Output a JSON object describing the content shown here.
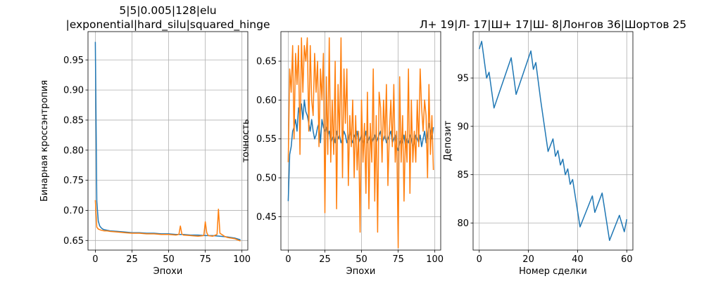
{
  "chart_data": [
    {
      "type": "line",
      "title": "5|5|0.005|128|elu\n|exponential|hard_silu|squared_hinge",
      "xlabel": "Эпохи",
      "ylabel": "Бинарная кроссэнтропия",
      "xlim": [
        -5,
        104
      ],
      "ylim": [
        0.634,
        0.997
      ],
      "xticks": [
        0,
        25,
        50,
        75,
        100
      ],
      "yticks": [
        0.65,
        0.7,
        0.75,
        0.8,
        0.85,
        0.9,
        0.95
      ],
      "ytick_labels": [
        "0.65",
        "0.70",
        "0.75",
        "0.80",
        "0.85",
        "0.90",
        "0.95"
      ],
      "grid": true,
      "series": [
        {
          "color": "#1f77b4",
          "x": [
            0,
            1,
            2,
            3,
            4,
            5,
            6,
            8,
            10,
            15,
            20,
            25,
            30,
            35,
            40,
            45,
            50,
            55,
            60,
            65,
            70,
            75,
            80,
            85,
            90,
            95,
            99
          ],
          "values": [
            0.98,
            0.715,
            0.682,
            0.674,
            0.671,
            0.669,
            0.668,
            0.667,
            0.666,
            0.665,
            0.664,
            0.663,
            0.663,
            0.662,
            0.662,
            0.661,
            0.661,
            0.66,
            0.66,
            0.659,
            0.659,
            0.658,
            0.658,
            0.657,
            0.656,
            0.654,
            0.651
          ]
        },
        {
          "color": "#ff7f0e",
          "x": [
            0,
            1,
            2,
            3,
            4,
            6,
            8,
            10,
            15,
            20,
            25,
            30,
            35,
            40,
            45,
            50,
            55,
            57,
            58,
            59,
            60,
            65,
            70,
            74,
            75,
            76,
            77,
            80,
            83,
            84,
            85,
            88,
            90,
            95,
            98,
            99
          ],
          "values": [
            0.717,
            0.672,
            0.669,
            0.668,
            0.667,
            0.666,
            0.666,
            0.665,
            0.664,
            0.663,
            0.662,
            0.662,
            0.661,
            0.661,
            0.66,
            0.66,
            0.659,
            0.66,
            0.674,
            0.661,
            0.659,
            0.658,
            0.657,
            0.658,
            0.681,
            0.663,
            0.658,
            0.657,
            0.66,
            0.702,
            0.662,
            0.657,
            0.655,
            0.653,
            0.65,
            0.649
          ]
        }
      ]
    },
    {
      "type": "line",
      "xlabel": "Эпохи",
      "ylabel": "точность",
      "xlim": [
        -5,
        104
      ],
      "ylim": [
        0.407,
        0.688
      ],
      "xticks": [
        0,
        25,
        50,
        75,
        100
      ],
      "yticks": [
        0.45,
        0.5,
        0.55,
        0.6,
        0.65
      ],
      "ytick_labels": [
        "0.45",
        "0.50",
        "0.55",
        "0.60",
        "0.65"
      ],
      "grid": true,
      "series": [
        {
          "color": "#1f77b4",
          "values": [
            0.47,
            0.53,
            0.54,
            0.56,
            0.565,
            0.575,
            0.56,
            0.59,
            0.58,
            0.595,
            0.575,
            0.6,
            0.585,
            0.58,
            0.57,
            0.56,
            0.575,
            0.56,
            0.55,
            0.555,
            0.565,
            0.57,
            0.545,
            0.575,
            0.565,
            0.56,
            0.565,
            0.555,
            0.56,
            0.545,
            0.55,
            0.555,
            0.545,
            0.56,
            0.55,
            0.555,
            0.545,
            0.55,
            0.56,
            0.555,
            0.545,
            0.55,
            0.56,
            0.55,
            0.545,
            0.555,
            0.55,
            0.56,
            0.545,
            0.55,
            0.555,
            0.545,
            0.55,
            0.56,
            0.545,
            0.55,
            0.555,
            0.545,
            0.55,
            0.555,
            0.545,
            0.55,
            0.555,
            0.56,
            0.545,
            0.55,
            0.555,
            0.545,
            0.55,
            0.555,
            0.56,
            0.545,
            0.55,
            0.555,
            0.54,
            0.535,
            0.545,
            0.55,
            0.545,
            0.555,
            0.54,
            0.55,
            0.545,
            0.555,
            0.55,
            0.54,
            0.545,
            0.555,
            0.55,
            0.545,
            0.555,
            0.54,
            0.55,
            0.56,
            0.545,
            0.555,
            0.57,
            0.56,
            0.55,
            0.565
          ]
        },
        {
          "color": "#ff7f0e",
          "values": [
            0.52,
            0.64,
            0.61,
            0.67,
            0.55,
            0.66,
            0.62,
            0.67,
            0.53,
            0.68,
            0.61,
            0.67,
            0.65,
            0.68,
            0.56,
            0.67,
            0.6,
            0.58,
            0.66,
            0.61,
            0.65,
            0.54,
            0.64,
            0.6,
            0.66,
            0.455,
            0.63,
            0.53,
            0.68,
            0.52,
            0.6,
            0.53,
            0.65,
            0.46,
            0.62,
            0.55,
            0.68,
            0.5,
            0.64,
            0.57,
            0.64,
            0.49,
            0.58,
            0.54,
            0.6,
            0.5,
            0.58,
            0.51,
            0.56,
            0.43,
            0.6,
            0.52,
            0.57,
            0.48,
            0.61,
            0.46,
            0.57,
            0.52,
            0.64,
            0.47,
            0.58,
            0.43,
            0.61,
            0.59,
            0.52,
            0.6,
            0.55,
            0.62,
            0.49,
            0.56,
            0.6,
            0.54,
            0.62,
            0.52,
            0.56,
            0.41,
            0.63,
            0.52,
            0.58,
            0.47,
            0.56,
            0.52,
            0.64,
            0.48,
            0.6,
            0.52,
            0.56,
            0.52,
            0.6,
            0.54,
            0.64,
            0.59,
            0.56,
            0.6,
            0.58,
            0.5,
            0.62,
            0.53,
            0.58,
            0.51
          ]
        }
      ]
    },
    {
      "type": "line",
      "title": "Л+ 19|Л- 17|Ш+ 17|Ш- 8|Лонгов 36|Шортов 25",
      "xlabel": "Номер сделки",
      "ylabel": "Депозит",
      "xlim": [
        -2.5,
        62.5
      ],
      "ylim": [
        77.2,
        99.8
      ],
      "xticks": [
        0,
        20,
        40,
        60
      ],
      "yticks": [
        80,
        85,
        90,
        95
      ],
      "ytick_labels": [
        "80",
        "85",
        "90",
        "95"
      ],
      "grid": true,
      "series": [
        {
          "color": "#1f77b4",
          "x": [
            0,
            1,
            3,
            4,
            6,
            13,
            15,
            21,
            22,
            23,
            25,
            28,
            30,
            31,
            32,
            33,
            34,
            35,
            36,
            37,
            38,
            41,
            46,
            47,
            50,
            53,
            57,
            59,
            60
          ],
          "values": [
            98.0,
            98.8,
            95.0,
            95.6,
            91.9,
            97.1,
            93.3,
            97.8,
            95.9,
            96.6,
            92.7,
            87.4,
            88.7,
            86.9,
            87.5,
            86.0,
            86.6,
            85.0,
            85.6,
            84.0,
            84.5,
            79.6,
            82.8,
            81.1,
            83.1,
            78.2,
            80.8,
            79.1,
            80.4
          ]
        }
      ]
    }
  ]
}
